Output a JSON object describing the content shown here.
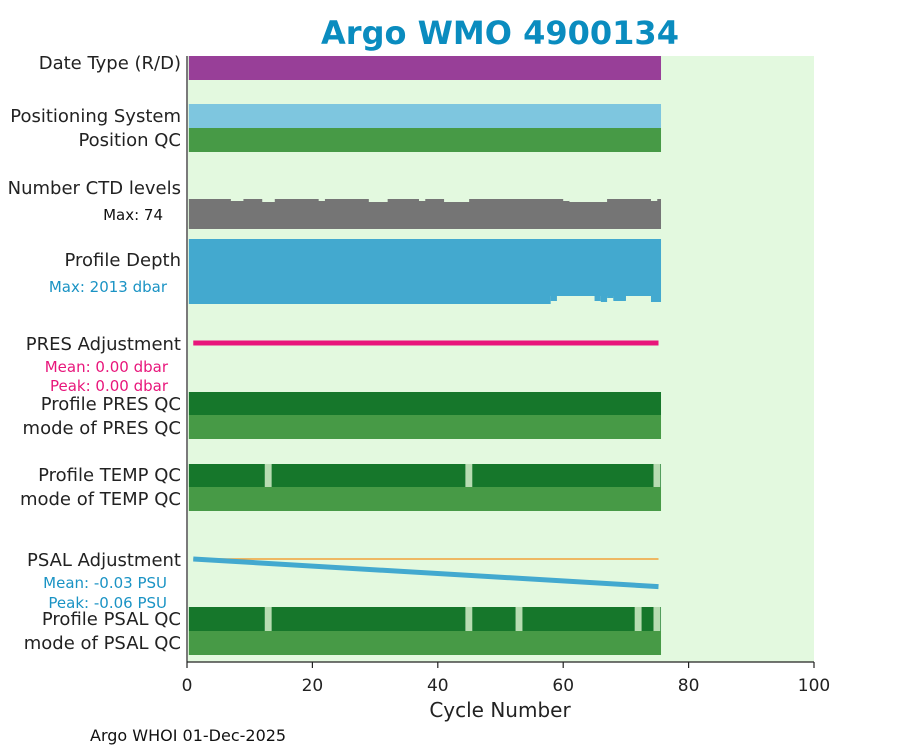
{
  "colors": {
    "title": "#0a8cbf",
    "plot_background": "#e3f9df",
    "date_type": "#983f98",
    "positioning": "#7ec6df",
    "qc_good_dark": "#16772b",
    "qc_good": "#479a46",
    "qc_light": "#b8dcb2",
    "ctd": "#757575",
    "depth": "#43a9cf",
    "pres_adj": "#e8167b",
    "psal_adj": "#43a9cf",
    "psal_ref": "#f2a33a",
    "pres_stats": "#e8167b",
    "psal_stats": "#1a93c4"
  },
  "chart_data": {
    "type": "bar",
    "title": "Argo WMO 4900134",
    "xlabel": "Cycle Number",
    "xlim": [
      0,
      100
    ],
    "xticks": [
      0,
      20,
      40,
      60,
      80,
      100
    ],
    "last_cycle": 75,
    "rows": [
      {
        "label": "Date Type (R/D)",
        "value_range": [
          0,
          75
        ],
        "color_key": "date_type"
      },
      {
        "label": "Positioning System",
        "value_range": [
          0,
          75
        ],
        "color_key": "positioning"
      },
      {
        "label": "Position QC",
        "value_range": [
          0,
          75
        ],
        "color_key": "qc_good"
      },
      {
        "label": "Number CTD levels",
        "stat": "Max: 74",
        "max_levels": 74,
        "color_key": "ctd"
      },
      {
        "label": "Profile Depth",
        "stat": "Max: 2013 dbar",
        "max_depth_dbar": 2013,
        "color_key": "depth"
      },
      {
        "label": "PRES Adjustment",
        "mean": "Mean: 0.00 dbar",
        "peak": "Peak: 0.00 dbar",
        "adjustment_start": 0.0,
        "adjustment_end": 0.0,
        "color_key": "pres_adj"
      },
      {
        "label": "Profile PRES QC",
        "qc_flags": [],
        "color_key": "qc_good_dark"
      },
      {
        "label": "mode of PRES QC",
        "color_key": "qc_good"
      },
      {
        "label": "Profile TEMP QC",
        "qc_flags": [
          12,
          44,
          74
        ],
        "color_key": "qc_good_dark"
      },
      {
        "label": "mode of TEMP QC",
        "color_key": "qc_good"
      },
      {
        "label": "PSAL Adjustment",
        "mean": "Mean: -0.03 PSU",
        "peak": "Peak: -0.06 PSU",
        "adjustment_start": 0.0,
        "adjustment_end": -0.06,
        "color_key": "psal_adj"
      },
      {
        "label": "Profile PSAL QC",
        "qc_flags": [
          12,
          44,
          52,
          71,
          74
        ],
        "color_key": "qc_good_dark"
      },
      {
        "label": "mode of PSAL QC",
        "color_key": "qc_good"
      }
    ],
    "ctd_levels_dips": [
      [
        7,
        9
      ],
      [
        12,
        14
      ],
      [
        21,
        22
      ],
      [
        29,
        32
      ],
      [
        37,
        38
      ],
      [
        41,
        45
      ],
      [
        60,
        61
      ],
      [
        61,
        67
      ],
      [
        74,
        75
      ]
    ],
    "depth_dips": [
      [
        58,
        59
      ],
      [
        59,
        63
      ],
      [
        65,
        66
      ],
      [
        67,
        68
      ],
      [
        68,
        70
      ],
      [
        70,
        74
      ]
    ]
  },
  "footer": "Argo WHOI 01-Dec-2025"
}
